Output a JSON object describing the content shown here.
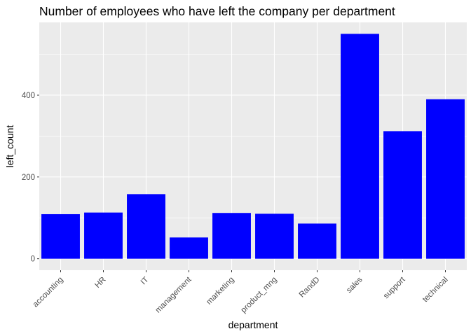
{
  "chart_data": {
    "type": "bar",
    "title": "Number of employees who have left the company per department",
    "xlabel": "department",
    "ylabel": "left_count",
    "categories": [
      "accounting",
      "HR",
      "IT",
      "management",
      "marketing",
      "product_mng",
      "RandD",
      "sales",
      "support",
      "technical"
    ],
    "values": [
      109,
      113,
      158,
      52,
      112,
      110,
      86,
      550,
      312,
      390
    ],
    "yticks": [
      0,
      200,
      400
    ],
    "ylim": [
      -28,
      578
    ],
    "grid": true,
    "legend": "none",
    "colors": {
      "bar": "#0000ff",
      "panel_background": "#ebebeb",
      "grid": "#ffffff",
      "tick_label": "#4d4d4d"
    }
  }
}
